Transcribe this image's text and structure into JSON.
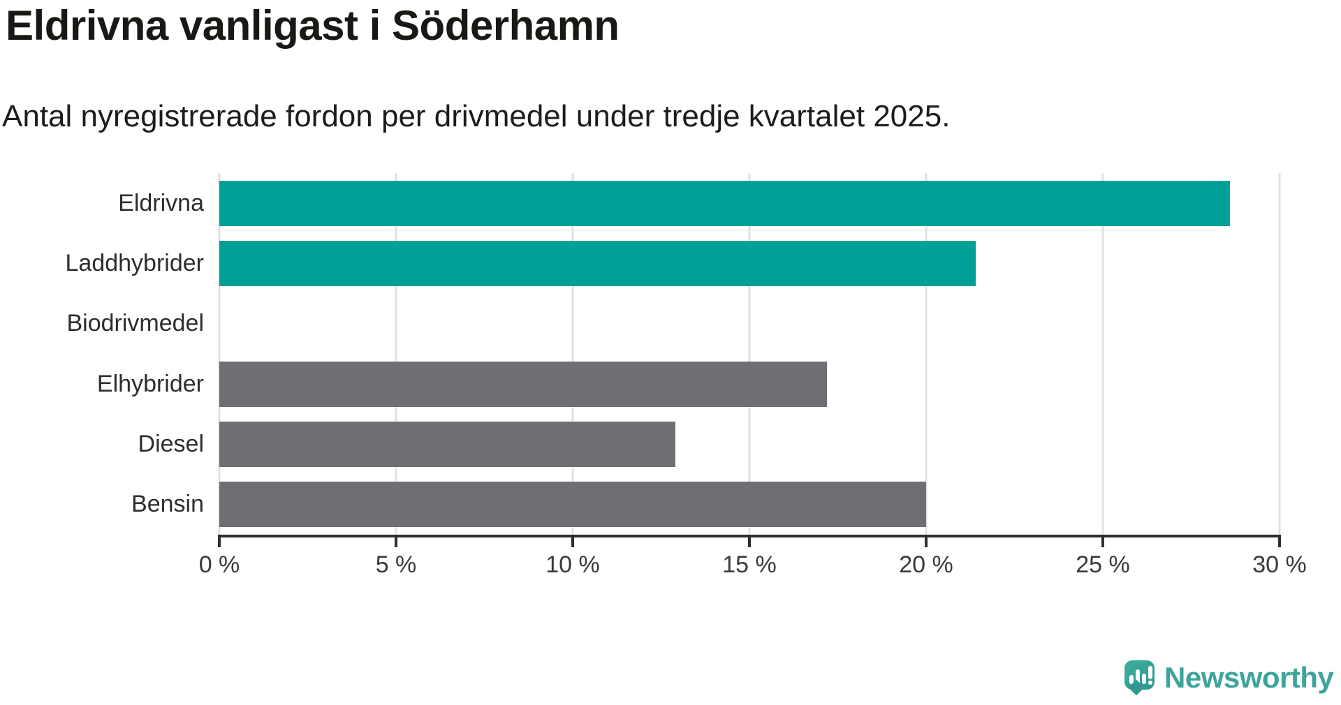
{
  "header": {
    "title": "Eldrivna vanligast i Söderhamn",
    "subtitle": "Antal nyregistrerade fordon per drivmedel under tredje kvartalet 2025."
  },
  "chart_data": {
    "type": "bar",
    "orientation": "horizontal",
    "title": "Eldrivna vanligast i Söderhamn",
    "subtitle": "Antal nyregistrerade fordon per drivmedel under tredje kvartalet 2025.",
    "categories": [
      "Eldrivna",
      "Laddhybrider",
      "Biodrivmedel",
      "Elhybrider",
      "Diesel",
      "Bensin"
    ],
    "values": [
      28.6,
      21.4,
      0,
      17.2,
      12.9,
      20.0
    ],
    "unit": "%",
    "xlim": [
      0,
      30
    ],
    "x_tick_labels": [
      "0 %",
      "5 %",
      "10 %",
      "15 %",
      "20 %",
      "25 %",
      "30 %"
    ],
    "grid": true,
    "legend": "none",
    "bar_colors": [
      "#00a096",
      "#00a096",
      "#6e6e73",
      "#6e6e73",
      "#6e6e73",
      "#6e6e73"
    ],
    "highlight_color": "#00a096",
    "default_bar_color": "#6e6e73",
    "gridline_color": "#e2e2e2",
    "axis_color": "#2e2e2e",
    "tick_label_color": "#3a3a3a",
    "category_label_color": "#2d2d2d"
  },
  "branding": {
    "name": "Newsworthy",
    "text_color": "#3da49c",
    "icon": "newsworthy-speech-bubble-bar-chart-icon",
    "icon_color_top": "#3fae9d",
    "icon_color_bottom": "#2f9890"
  }
}
